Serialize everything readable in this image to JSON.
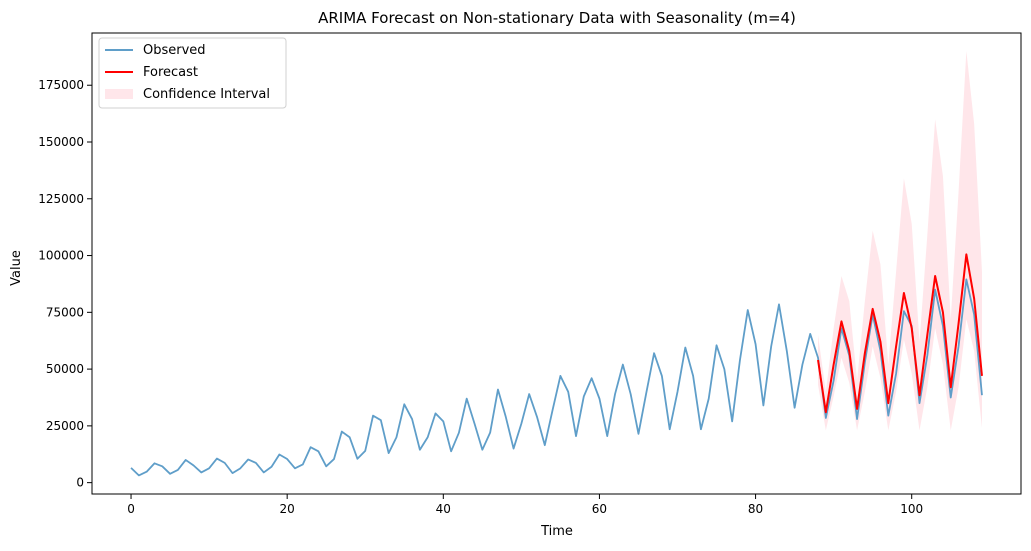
{
  "chart_data": {
    "type": "line",
    "title": "ARIMA Forecast on Non-stationary Data with Seasonality (m=4)",
    "xlabel": "Time",
    "ylabel": "Value",
    "xlim": [
      -5,
      114
    ],
    "ylim": [
      -5000,
      198000
    ],
    "x_ticks": [
      0,
      20,
      40,
      60,
      80,
      100
    ],
    "y_ticks": [
      0,
      25000,
      50000,
      75000,
      100000,
      125000,
      150000,
      175000
    ],
    "grid": false,
    "legend_position": "upper-left",
    "legend": [
      "Observed",
      "Forecast",
      "Confidence Interval"
    ],
    "colors": {
      "observed": "#5f9ec9",
      "forecast": "#ff0000",
      "ci_fill": "#ffc0cb"
    },
    "series": [
      {
        "name": "Observed",
        "x_start": 0,
        "values": [
          6500,
          3200,
          4800,
          8500,
          7200,
          3900,
          5600,
          10000,
          7600,
          4500,
          6300,
          10600,
          8700,
          4200,
          6300,
          10200,
          8700,
          4500,
          7000,
          12400,
          10400,
          6300,
          8000,
          15600,
          13800,
          7200,
          10400,
          22500,
          20000,
          10500,
          14000,
          29500,
          27500,
          13000,
          20000,
          34500,
          28000,
          14500,
          20000,
          30500,
          27000,
          13800,
          22000,
          37000,
          26000,
          14500,
          22000,
          41000,
          29000,
          15000,
          26000,
          39000,
          29000,
          16500,
          32000,
          47000,
          40000,
          20500,
          38000,
          46000,
          37000,
          20500,
          39000,
          52000,
          39000,
          21500,
          39500,
          57000,
          47000,
          23500,
          40000,
          59500,
          47000,
          23500,
          37000,
          60500,
          50000,
          27000,
          54000,
          76000,
          61000,
          34000,
          60000,
          78500,
          58000,
          33000,
          52000,
          65500,
          55000,
          28500,
          45000,
          68000,
          56000,
          28000,
          53000,
          74000,
          58000,
          29500,
          48000,
          75500,
          69000,
          35000,
          56000,
          85000,
          69000,
          37500,
          60000,
          89500,
          74000,
          38500
        ]
      },
      {
        "name": "Forecast",
        "x_start": 88,
        "values": [
          54000,
          31000,
          52000,
          71000,
          58000,
          32500,
          57000,
          76500,
          62000,
          35000,
          60000,
          83500,
          68000,
          38500,
          65000,
          91000,
          75000,
          42000,
          70000,
          100500,
          81000,
          47000
        ]
      }
    ],
    "confidence_interval": {
      "name": "Confidence Interval",
      "x_start": 88,
      "lower": [
        43000,
        23000,
        38000,
        55000,
        44000,
        23000,
        40000,
        60000,
        46000,
        23000,
        40000,
        63000,
        48000,
        23000,
        42000,
        68000,
        52000,
        23000,
        42000,
        72000,
        58000,
        24000
      ],
      "upper": [
        65000,
        40000,
        68000,
        91000,
        80000,
        45000,
        80000,
        111000,
        96000,
        52000,
        93000,
        134000,
        114000,
        62000,
        109000,
        160000,
        135000,
        72000,
        128000,
        190000,
        158000,
        93000
      ]
    }
  }
}
